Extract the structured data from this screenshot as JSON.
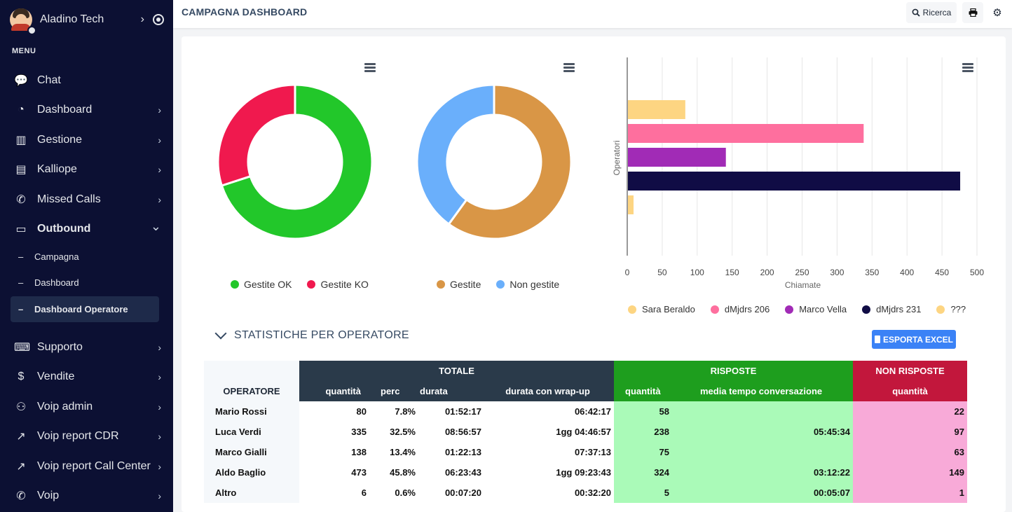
{
  "user": {
    "name": "Aladino Tech"
  },
  "menu_title": "MENU",
  "nav": [
    {
      "label": "Chat",
      "icon": "chat-icon",
      "has_arrow": false
    },
    {
      "label": "Dashboard",
      "icon": "dashboard-icon",
      "has_arrow": true
    },
    {
      "label": "Gestione",
      "icon": "barcode-icon",
      "has_arrow": true
    },
    {
      "label": "Kalliope",
      "icon": "id-card-icon",
      "has_arrow": true
    },
    {
      "label": "Missed Calls",
      "icon": "phone-slash-icon",
      "has_arrow": true
    },
    {
      "label": "Outbound",
      "icon": "monitor-icon",
      "has_arrow": true,
      "expanded": true
    },
    {
      "label": "Supporto",
      "icon": "keyboard-icon",
      "has_arrow": true
    },
    {
      "label": "Vendite",
      "icon": "dollar-icon",
      "has_arrow": true
    },
    {
      "label": "Voip admin",
      "icon": "user-cog-icon",
      "has_arrow": true
    },
    {
      "label": "Voip report CDR",
      "icon": "line-chart-icon",
      "has_arrow": true
    },
    {
      "label": "Voip report Call Center",
      "icon": "line-chart-icon",
      "has_arrow": true
    },
    {
      "label": "Voip",
      "icon": "phone-icon",
      "has_arrow": true
    }
  ],
  "subnav": [
    {
      "label": "Campagna",
      "active": false
    },
    {
      "label": "Dashboard",
      "active": false
    },
    {
      "label": "Dashboard Operatore",
      "active": true
    }
  ],
  "topbar": {
    "title": "CAMPAGNA DASHBOARD",
    "search_label": "Ricerca"
  },
  "donut1": {
    "slices": [
      {
        "label": "Gestite OK",
        "value": 70,
        "color": "#22c72a"
      },
      {
        "label": "Gestite KO",
        "value": 30,
        "color": "#f0194e"
      }
    ]
  },
  "donut2": {
    "slices": [
      {
        "label": "Gestite",
        "value": 60,
        "color": "#d99646"
      },
      {
        "label": "Non gestite",
        "value": 40,
        "color": "#6aaffb"
      }
    ]
  },
  "chart_data": {
    "type": "bar",
    "orientation": "horizontal",
    "xlabel": "Chiamate",
    "ylabel": "Operatori",
    "xlim": [
      0,
      500
    ],
    "xticks": [
      "0",
      "50",
      "100",
      "150",
      "200",
      "250",
      "300",
      "350",
      "400",
      "450",
      "500"
    ],
    "grid": true,
    "legend_position": "bottom",
    "series": [
      {
        "name": "Sara Beraldo",
        "value": 83,
        "color": "#fdd582"
      },
      {
        "name": "dMjdrs 206",
        "value": 338,
        "color": "#fe6f9e"
      },
      {
        "name": "Marco Vella",
        "value": 141,
        "color": "#a12bb6"
      },
      {
        "name": "dMjdrs 231",
        "value": 476,
        "color": "#100c45"
      },
      {
        "name": "???",
        "value": 9,
        "color": "#fdd582"
      }
    ]
  },
  "section": {
    "title": "STATISTICHE PER OPERATORE",
    "export_label": "ESPORTA EXCEL"
  },
  "table": {
    "group_headers": {
      "totale": "TOTALE",
      "risposte": "RISPOSTE",
      "non_risposte": "NON RISPOSTE"
    },
    "columns": {
      "operatore": "OPERATORE",
      "quantita": "quantità",
      "perc": "perc",
      "durata": "durata",
      "durata_wrap": "durata con wrap-up",
      "risp_quantita": "quantità",
      "media": "media tempo conversazione",
      "non_quantita": "quantità"
    },
    "rows": [
      {
        "operatore": "Mario Rossi",
        "quantita": "80",
        "perc": "7.8%",
        "durata": "01:52:17",
        "durata_wrap": "06:42:17",
        "risp_quantita": "58",
        "media": "",
        "non_quantita": "22"
      },
      {
        "operatore": "Luca Verdi",
        "quantita": "335",
        "perc": "32.5%",
        "durata": "08:56:57",
        "durata_wrap": "1gg 04:46:57",
        "risp_quantita": "238",
        "media": "05:45:34",
        "non_quantita": "97"
      },
      {
        "operatore": "Marco Gialli",
        "quantita": "138",
        "perc": "13.4%",
        "durata": "01:22:13",
        "durata_wrap": "07:37:13",
        "risp_quantita": "75",
        "media": "",
        "non_quantita": "63"
      },
      {
        "operatore": "Aldo Baglio",
        "quantita": "473",
        "perc": "45.8%",
        "durata": "06:23:43",
        "durata_wrap": "1gg 09:23:43",
        "risp_quantita": "324",
        "media": "03:12:22",
        "non_quantita": "149"
      },
      {
        "operatore": "Altro",
        "quantita": "6",
        "perc": "0.6%",
        "durata": "00:07:20",
        "durata_wrap": "00:32:20",
        "risp_quantita": "5",
        "media": "00:05:07",
        "non_quantita": "1"
      }
    ]
  }
}
